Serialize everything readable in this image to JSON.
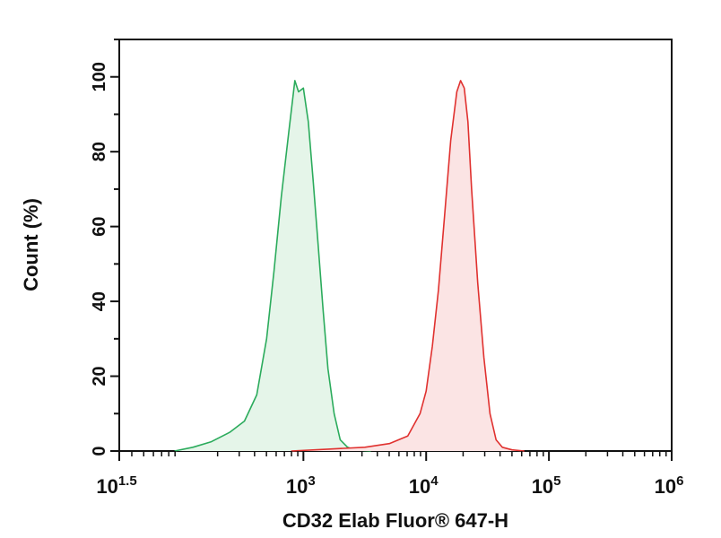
{
  "chart_data": {
    "type": "area",
    "title": "",
    "xlabel": "CD32 Elab Fluor® 647-H",
    "ylabel": "Count (%)",
    "x_scale": "log10",
    "xlim": [
      1.5,
      6
    ],
    "ylim": [
      0,
      110
    ],
    "x_ticks": [
      {
        "value": 1.5,
        "base": "10",
        "exp": "1.5"
      },
      {
        "value": 3,
        "base": "10",
        "exp": "3"
      },
      {
        "value": 4,
        "base": "10",
        "exp": "4"
      },
      {
        "value": 5,
        "base": "10",
        "exp": "5"
      },
      {
        "value": 6,
        "base": "10",
        "exp": "6"
      }
    ],
    "y_ticks": [
      0,
      20,
      40,
      60,
      80,
      100
    ],
    "grid": false,
    "legend": "none",
    "series": [
      {
        "color": "#2bab5c",
        "fill": "#e5f5e9",
        "x": [
          1.95,
          2.1,
          2.25,
          2.4,
          2.52,
          2.62,
          2.7,
          2.76,
          2.82,
          2.88,
          2.93,
          2.96,
          3.0,
          3.04,
          3.08,
          3.12,
          3.16,
          3.2,
          3.25,
          3.3,
          3.36,
          3.4,
          3.46,
          3.55
        ],
        "y": [
          0,
          1,
          2.5,
          5,
          8,
          15,
          30,
          48,
          68,
          85,
          99,
          96,
          97,
          88,
          72,
          55,
          38,
          22,
          10,
          3,
          1,
          0.5,
          0.2,
          0
        ]
      },
      {
        "color": "#e0312f",
        "fill": "#fbe4e4",
        "x": [
          2.9,
          3.2,
          3.5,
          3.7,
          3.85,
          3.95,
          4.0,
          4.05,
          4.1,
          4.15,
          4.2,
          4.25,
          4.28,
          4.31,
          4.34,
          4.37,
          4.42,
          4.47,
          4.52,
          4.57,
          4.62,
          4.7,
          4.8
        ],
        "y": [
          0,
          0.5,
          1,
          2,
          4,
          10,
          16,
          28,
          43,
          63,
          83,
          96,
          99,
          97,
          88,
          70,
          45,
          25,
          10,
          3,
          1,
          0.3,
          0
        ]
      }
    ]
  }
}
